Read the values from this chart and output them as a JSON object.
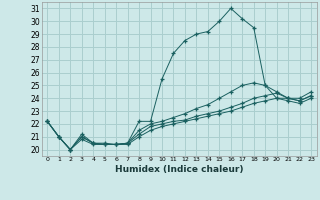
{
  "title": "",
  "xlabel": "Humidex (Indice chaleur)",
  "ylabel": "",
  "bg_color": "#cde8e8",
  "grid_color": "#aacece",
  "line_color": "#1a6060",
  "xlim": [
    -0.5,
    23.5
  ],
  "ylim": [
    19.5,
    31.5
  ],
  "yticks": [
    20,
    21,
    22,
    23,
    24,
    25,
    26,
    27,
    28,
    29,
    30,
    31
  ],
  "xticks": [
    0,
    1,
    2,
    3,
    4,
    5,
    6,
    7,
    8,
    9,
    10,
    11,
    12,
    13,
    14,
    15,
    16,
    17,
    18,
    19,
    20,
    21,
    22,
    23
  ],
  "series": [
    {
      "x": [
        0,
        1,
        2,
        3,
        4,
        5,
        6,
        7,
        8,
        9,
        10,
        11,
        12,
        13,
        14,
        15,
        16,
        17,
        18,
        19,
        20,
        21,
        22,
        23
      ],
      "y": [
        22.2,
        21.0,
        20.0,
        21.2,
        20.5,
        20.5,
        20.4,
        20.5,
        22.2,
        22.2,
        25.5,
        27.5,
        28.5,
        29.0,
        29.2,
        30.0,
        31.0,
        30.2,
        29.5,
        25.0,
        24.0,
        24.0,
        24.0,
        24.5
      ]
    },
    {
      "x": [
        0,
        1,
        2,
        3,
        4,
        5,
        6,
        7,
        8,
        9,
        10,
        11,
        12,
        13,
        14,
        15,
        16,
        17,
        18,
        19,
        20,
        21,
        22,
        23
      ],
      "y": [
        22.2,
        21.0,
        20.0,
        21.0,
        20.5,
        20.4,
        20.4,
        20.5,
        21.5,
        22.0,
        22.2,
        22.5,
        22.8,
        23.2,
        23.5,
        24.0,
        24.5,
        25.0,
        25.2,
        25.0,
        24.5,
        24.0,
        23.8,
        24.2
      ]
    },
    {
      "x": [
        0,
        1,
        2,
        3,
        4,
        5,
        6,
        7,
        8,
        9,
        10,
        11,
        12,
        13,
        14,
        15,
        16,
        17,
        18,
        19,
        20,
        21,
        22,
        23
      ],
      "y": [
        22.2,
        21.0,
        20.0,
        21.0,
        20.5,
        20.4,
        20.4,
        20.5,
        21.2,
        21.8,
        22.0,
        22.2,
        22.3,
        22.6,
        22.8,
        23.0,
        23.3,
        23.6,
        24.0,
        24.2,
        24.4,
        24.0,
        23.8,
        24.2
      ]
    },
    {
      "x": [
        0,
        1,
        2,
        3,
        4,
        5,
        6,
        7,
        8,
        9,
        10,
        11,
        12,
        13,
        14,
        15,
        16,
        17,
        18,
        19,
        20,
        21,
        22,
        23
      ],
      "y": [
        22.2,
        21.0,
        20.0,
        20.8,
        20.4,
        20.4,
        20.4,
        20.4,
        21.0,
        21.5,
        21.8,
        22.0,
        22.2,
        22.4,
        22.6,
        22.8,
        23.0,
        23.3,
        23.6,
        23.8,
        24.0,
        23.8,
        23.6,
        24.0
      ]
    }
  ]
}
